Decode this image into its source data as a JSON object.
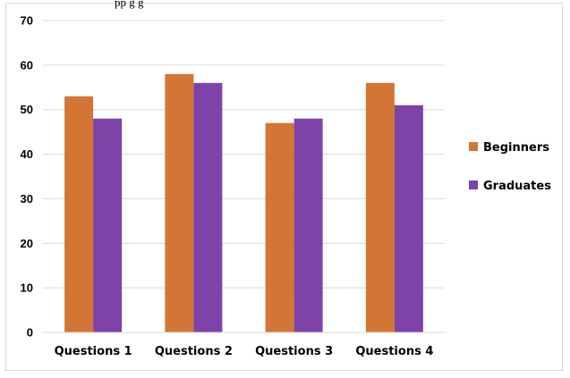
{
  "header_fragment": "pp                  g         g",
  "chart_data": {
    "type": "bar",
    "title": "",
    "xlabel": "",
    "ylabel": "",
    "ylim": [
      0,
      70
    ],
    "yticks": [
      0,
      10,
      20,
      30,
      40,
      50,
      60,
      70
    ],
    "grid": true,
    "legend_position": "right",
    "categories": [
      "Questions 1",
      "Questions 2",
      "Questions 3",
      "Questions 4"
    ],
    "series": [
      {
        "name": "Beginners",
        "color": "#d37635",
        "values": [
          53,
          58,
          47,
          56
        ]
      },
      {
        "name": "Graduates",
        "color": "#7f42a8",
        "values": [
          48,
          56,
          48,
          51
        ]
      }
    ]
  }
}
